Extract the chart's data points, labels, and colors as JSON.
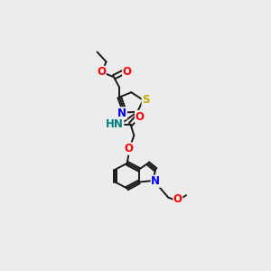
{
  "bg_color": "#ececec",
  "bond_color": "#1a1a1a",
  "bond_width": 1.4,
  "atom_colors": {
    "O": "#ff0000",
    "N": "#0000ff",
    "S": "#ccaa00",
    "HN": "#008080",
    "C": "#1a1a1a"
  },
  "font_size": 8.5,
  "fig_width": 3.0,
  "fig_height": 3.0,
  "dpi": 100
}
